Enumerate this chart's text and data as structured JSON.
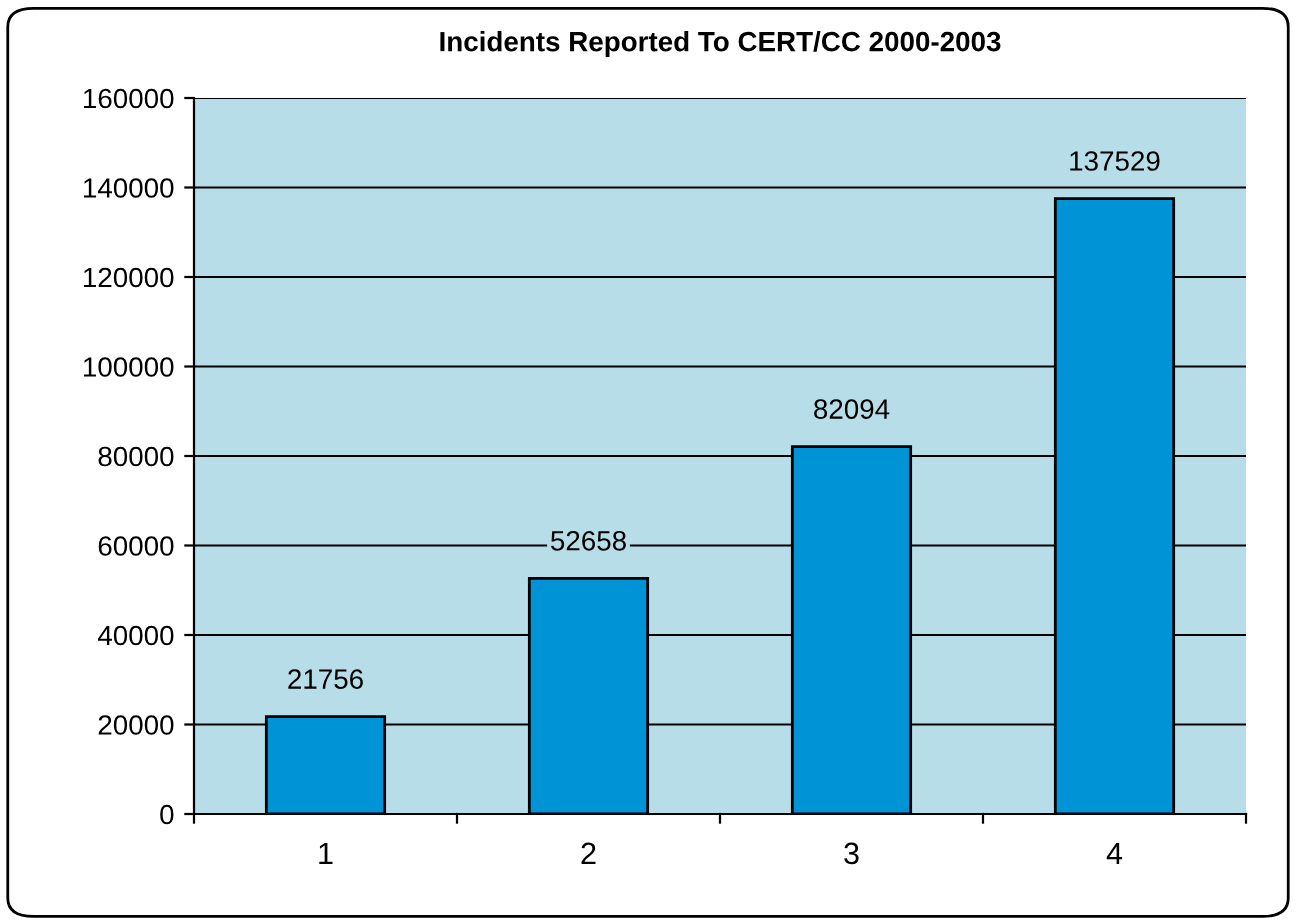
{
  "chart_data": {
    "type": "bar",
    "title": "Incidents Reported To CERT/CC 2000-2003",
    "categories": [
      "1",
      "2",
      "3",
      "4"
    ],
    "values": [
      21756,
      52658,
      82094,
      137529
    ],
    "color": "#0093d6",
    "ylim": [
      0,
      160000
    ],
    "yticks": [
      0,
      20000,
      40000,
      60000,
      80000,
      100000,
      120000,
      140000,
      160000
    ],
    "grid": "y",
    "data_labels": true
  }
}
